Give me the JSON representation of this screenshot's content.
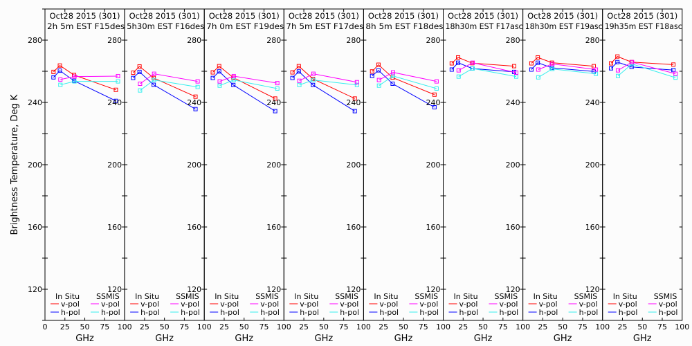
{
  "chart_data": {
    "type": "line",
    "ylabel": "Brightness Temperature, Deg K",
    "xlabel": "GHz",
    "xlim": [
      0,
      100
    ],
    "ylim": [
      100,
      300
    ],
    "x_ticks": [
      0,
      25,
      50,
      75,
      100
    ],
    "y_ticks": [
      120,
      160,
      200,
      240,
      280
    ],
    "grid": false,
    "colors": {
      "insitu_v": "#ff0000",
      "insitu_h": "#0000ff",
      "ssmis_v": "#ff00ff",
      "ssmis_h": "#33eeee"
    },
    "legend": {
      "insitu_title": "In Situ",
      "ssmis_title": "SSMIS",
      "vpol": "v-pol",
      "hpol": "h-pol",
      "placement": "bottom"
    },
    "insitu_freqs": [
      10.7,
      18.7,
      36.5,
      89
    ],
    "ssmis_freqs": [
      19.35,
      37,
      91.655
    ],
    "panels": [
      {
        "title1": "Oct28 2015 (301)",
        "title2": "2h 5m EST F15des",
        "insitu_v": [
          259.6,
          263.7,
          257.6,
          248.1
        ],
        "insitu_h": [
          256.1,
          260.4,
          253.9,
          241.0
        ],
        "ssmis_v": [
          254.7,
          256.6,
          256.9
        ],
        "ssmis_h": [
          251.3,
          253.5,
          253.5
        ]
      },
      {
        "title1": "Oct28 2015 (301)",
        "title2": "5h30m EST F16des",
        "insitu_v": [
          259.1,
          263.1,
          255.7,
          243.7
        ],
        "insitu_h": [
          255.7,
          259.6,
          251.3,
          235.7
        ],
        "ssmis_v": [
          252.0,
          258.4,
          253.5
        ],
        "ssmis_h": [
          247.7,
          254.4,
          249.9
        ]
      },
      {
        "title1": "Oct28 2015 (301)",
        "title2": "7h 0m EST F19des",
        "insitu_v": [
          259.3,
          263.3,
          255.9,
          242.5
        ],
        "insitu_h": [
          255.7,
          259.9,
          251.2,
          234.4
        ],
        "ssmis_v": [
          253.5,
          256.9,
          252.4
        ],
        "ssmis_h": [
          250.8,
          254.4,
          248.9
        ]
      },
      {
        "title1": "Oct28 2015 (301)",
        "title2": "7h 5m EST F17des",
        "insitu_v": [
          259.3,
          263.3,
          255.1,
          242.5
        ],
        "insitu_h": [
          255.7,
          259.9,
          251.2,
          234.4
        ],
        "ssmis_v": [
          253.9,
          258.4,
          253.0
        ],
        "ssmis_h": [
          251.2,
          254.4,
          251.2
        ]
      },
      {
        "title1": "Oct28 2015 (301)",
        "title2": "8h 5m EST F18des",
        "insitu_v": [
          259.9,
          264.2,
          255.9,
          245.0
        ],
        "insitu_h": [
          257.0,
          260.6,
          252.0,
          236.9
        ],
        "ssmis_v": [
          254.4,
          259.3,
          253.5
        ],
        "ssmis_h": [
          250.8,
          257.0,
          248.9
        ]
      },
      {
        "title1": "Oct28 2015 (301)",
        "title2": "18h30m EST F17asc",
        "insitu_v": [
          265.1,
          268.9,
          265.2,
          263.3
        ],
        "insitu_h": [
          261.1,
          265.5,
          261.8,
          259.6
        ],
        "ssmis_v": [
          260.6,
          265.5,
          259.1
        ],
        "ssmis_h": [
          256.6,
          261.8,
          256.6
        ]
      },
      {
        "title1": "Oct28 2015 (301)",
        "title2": "18h30m EST F19asc",
        "insitu_v": [
          265.1,
          268.9,
          265.5,
          263.3
        ],
        "insitu_h": [
          261.1,
          265.5,
          262.2,
          259.9
        ],
        "ssmis_v": [
          261.1,
          264.7,
          261.1
        ],
        "ssmis_h": [
          256.1,
          261.5,
          258.4
        ]
      },
      {
        "title1": "Oct28 2015 (301)",
        "title2": "19h35m EST F18asc",
        "insitu_v": [
          265.1,
          269.5,
          265.9,
          264.3
        ],
        "insitu_h": [
          261.9,
          265.9,
          262.8,
          260.8
        ],
        "ssmis_v": [
          260.6,
          265.9,
          258.4
        ],
        "ssmis_h": [
          257.0,
          264.7,
          255.9
        ]
      }
    ]
  }
}
